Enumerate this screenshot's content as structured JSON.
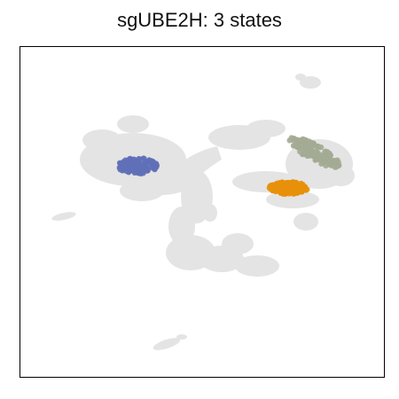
{
  "chart_data": {
    "type": "scatter",
    "title": "sgUBE2H: 3 states",
    "xlabel": "",
    "ylabel": "",
    "grid": false,
    "axes_ticks": false,
    "background_color": "#dcdcdc",
    "series": [
      {
        "color": "#6170b8",
        "cluster": {
          "cx": 155,
          "cy": 187,
          "rx": 22,
          "ry": 9
        }
      },
      {
        "color": "#e8900a",
        "cluster": {
          "cx": 325,
          "cy": 212,
          "rx": 22,
          "ry": 7
        }
      },
      {
        "color": "#a3ab93",
        "cluster": {
          "cx": 355,
          "cy": 172,
          "rx": 32,
          "ry": 9,
          "angle": 28
        }
      }
    ]
  }
}
